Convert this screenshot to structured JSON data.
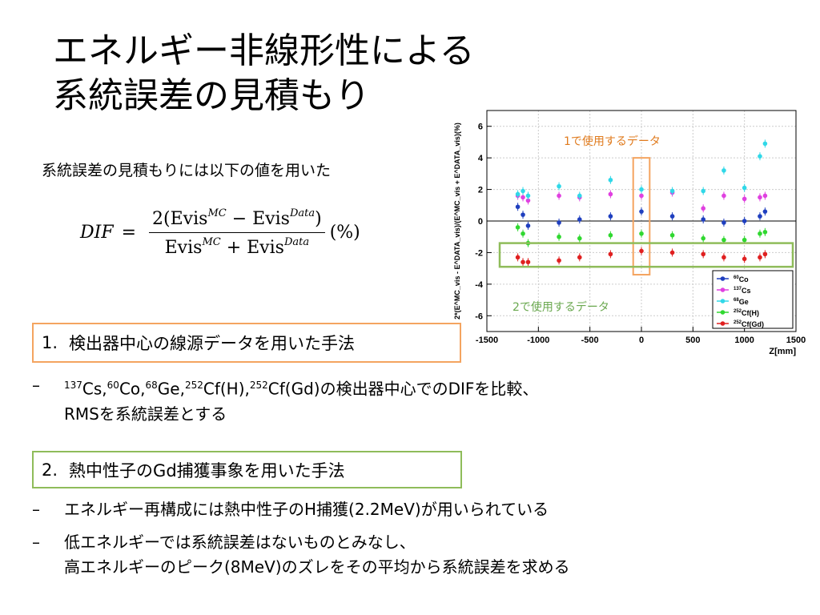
{
  "slide": {
    "title_line1": "エネルギー非線形性による",
    "title_line2": "系統誤差の見積もり",
    "intro": "系統誤差の見積もりには以下の値を用いた",
    "formula": {
      "lhs": "DIF",
      "numerator": "2(Evis",
      "mc": "MC",
      "minus": " − Evis",
      "data": "Data",
      "num_close": ")",
      "den1": "Evis",
      "plus": " + Evis",
      "unit": "(%)"
    },
    "method1": {
      "number": "1.",
      "label": "検出器中心の線源データを用いた手法"
    },
    "method1_bullets": [
      {
        "iso1": "137",
        "el1": "Cs,",
        "iso2": "60",
        "el2": "Co,",
        "iso3": "68",
        "el3": "Ge,",
        "iso4": "252",
        "el4": "Cf(H),",
        "iso5": "252",
        "el5": "Cf(Gd)の検出器中心でのDIFを比較、",
        "line2": "RMSを系統誤差とする"
      }
    ],
    "method2": {
      "number": "2.",
      "label": "熱中性子のGd捕獲事象を用いた手法"
    },
    "method2_bullets": [
      {
        "line1": "エネルギー再構成には熱中性子のH捕獲(2.2MeV)が用いられている"
      },
      {
        "line1": "低エネルギーでは系統誤差はないものとみなし、",
        "line2": "高エネルギーのピーク(8MeV)のズレをその平均から系統誤差を求める"
      }
    ],
    "dash": "–",
    "annotation1": "1で使用するデータ",
    "annotation2": "2で使用するデータ"
  },
  "colors": {
    "orange_box": "#f4a460",
    "green_box": "#8fbc5a"
  },
  "chart_data": {
    "type": "scatter",
    "xlabel": "Z[mm]",
    "ylabel": "2*(E^MC_vis - E^DATA_vis)/(E^MC_vis + E^DATA_vis)(%)",
    "xlim": [
      -1500,
      1500
    ],
    "ylim": [
      -7,
      7
    ],
    "xticks": [
      -1500,
      -1000,
      -500,
      0,
      500,
      1000,
      1500
    ],
    "yticks": [
      -6,
      -4,
      -2,
      0,
      2,
      4,
      6
    ],
    "grid": true,
    "legend_position": "bottom-right",
    "x": [
      -1200,
      -1150,
      -1100,
      -800,
      -600,
      -300,
      0,
      300,
      600,
      800,
      1000,
      1150,
      1200
    ],
    "series": [
      {
        "name": "60Co",
        "iso": "60",
        "el": "Co",
        "color": "#1f3fbf",
        "values": [
          0.9,
          0.4,
          -0.3,
          -0.1,
          0.1,
          0.3,
          0.6,
          0.3,
          0.1,
          -0.1,
          0.0,
          0.3,
          0.6
        ]
      },
      {
        "name": "137Cs",
        "iso": "137",
        "el": "Cs",
        "color": "#e040e0",
        "values": [
          1.6,
          1.5,
          1.3,
          1.6,
          1.5,
          1.7,
          1.6,
          1.8,
          0.8,
          1.6,
          1.4,
          1.5,
          1.6
        ]
      },
      {
        "name": "68Ge",
        "iso": "68",
        "el": "Ge",
        "color": "#30d8e8",
        "values": [
          1.7,
          1.9,
          1.6,
          2.2,
          1.6,
          2.6,
          2.0,
          1.9,
          1.9,
          3.2,
          2.1,
          4.1,
          4.9
        ]
      },
      {
        "name": "252Cf(H)",
        "iso": "252",
        "el": "Cf(H)",
        "color": "#30d830",
        "values": [
          -0.4,
          -0.8,
          -1.4,
          -1.0,
          -1.1,
          -0.9,
          -0.8,
          -0.9,
          -1.1,
          -1.2,
          -1.2,
          -0.8,
          -0.7
        ]
      },
      {
        "name": "252Cf(Gd)",
        "iso": "252",
        "el": "Cf(Gd)",
        "color": "#e02020",
        "values": [
          -2.3,
          -2.6,
          -2.6,
          -2.5,
          -2.3,
          -2.1,
          -1.9,
          -2.0,
          -2.1,
          -2.3,
          -2.4,
          -2.3,
          -2.1
        ]
      }
    ]
  }
}
